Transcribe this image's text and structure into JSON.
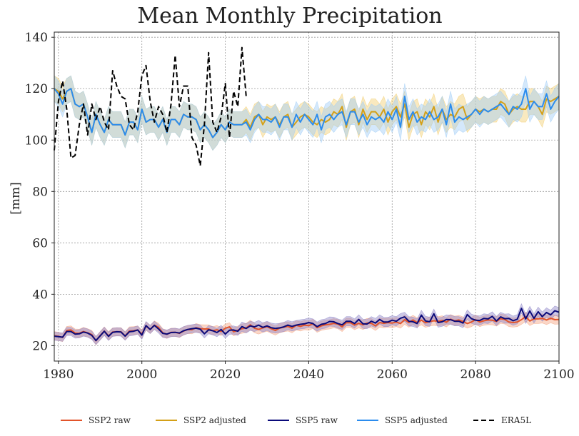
{
  "chart_data": {
    "type": "line",
    "title": "Mean Monthly Precipitation",
    "xlabel": "",
    "ylabel": "[mm]",
    "xlim": [
      1979,
      2100
    ],
    "ylim": [
      14,
      142
    ],
    "xticks": [
      1980,
      2000,
      2020,
      2040,
      2060,
      2080,
      2100
    ],
    "yticks": [
      20,
      40,
      60,
      80,
      100,
      120,
      140
    ],
    "grid": true,
    "legend_position": "bottom",
    "series": [
      {
        "name": "SSP2 raw",
        "color": "#e2542a",
        "band_color": "#f4a582",
        "style": "solid",
        "x_start": 1979,
        "x_step": 1,
        "values": [
          23.9,
          23.6,
          23.2,
          25.9,
          26.1,
          24.9,
          24.8,
          25.5,
          25.0,
          24.3,
          21.9,
          23.9,
          25.7,
          23.8,
          25.3,
          25.4,
          25.4,
          23.8,
          25.7,
          25.8,
          26.1,
          24.5,
          27.6,
          26.3,
          28.0,
          27.1,
          25.0,
          24.4,
          25.2,
          25.2,
          24.8,
          25.7,
          26.3,
          26.2,
          27.0,
          26.6,
          26.5,
          26.5,
          25.8,
          26.2,
          25.5,
          26.8,
          27.3,
          25.4,
          26.0,
          26.6,
          26.9,
          28.1,
          26.8,
          26.3,
          26.9,
          27.4,
          26.6,
          25.9,
          26.8,
          27.2,
          27.5,
          26.8,
          27.9,
          27.5,
          28.0,
          27.8,
          28.5,
          27.0,
          27.7,
          28.1,
          28.3,
          28.7,
          28.4,
          27.3,
          28.9,
          28.9,
          28.0,
          28.7,
          28.1,
          28.8,
          28.7,
          27.7,
          29.0,
          28.7,
          29.0,
          28.8,
          29.2,
          28.6,
          30.1,
          29.0,
          30.0,
          29.0,
          29.9,
          28.9,
          29.4,
          29.7,
          29.5,
          29.8,
          29.1,
          30.3,
          29.7,
          30.0,
          29.4,
          28.6,
          29.2,
          30.1,
          29.2,
          29.7,
          30.0,
          29.9,
          29.4,
          30.5,
          30.2,
          29.2,
          29.0,
          29.2,
          30.1,
          31.3,
          29.6,
          30.4,
          30.4,
          30.6,
          30.0,
          30.7,
          30.1,
          30.2
        ]
      },
      {
        "name": "SSP2 adjusted",
        "color": "#d4a017",
        "band_color": "#f2cf72",
        "style": "solid",
        "x_start": 1979,
        "x_step": 1,
        "values": [
          120,
          119,
          116,
          119,
          120,
          114,
          113,
          114,
          109,
          103,
          110,
          106,
          103,
          108,
          106,
          106,
          106,
          102,
          107,
          107,
          104,
          112,
          107,
          108,
          108,
          105,
          108,
          103,
          108,
          108,
          106,
          110,
          109,
          109,
          108,
          104,
          106,
          104,
          101,
          103,
          106,
          104,
          107,
          106,
          106,
          106,
          108,
          105,
          109,
          110,
          106,
          109,
          108,
          109,
          106,
          109,
          110,
          105,
          107,
          109,
          110,
          109,
          107,
          106,
          108,
          107,
          108,
          111,
          110,
          113,
          105,
          111,
          112,
          106,
          112,
          108,
          111,
          111,
          109,
          112,
          107,
          111,
          113,
          109,
          114,
          105,
          110,
          111,
          106,
          111,
          109,
          113,
          107,
          112,
          108,
          110,
          109,
          112,
          113,
          108,
          110,
          112,
          111,
          112,
          111,
          112,
          112,
          115,
          114,
          110,
          112,
          113,
          112,
          112,
          115,
          115,
          113,
          110,
          116,
          115,
          116,
          117
        ]
      },
      {
        "name": "SSP5 raw",
        "color": "#0a0a7a",
        "band_color": "#8e86c8",
        "style": "solid",
        "x_start": 1979,
        "x_step": 1,
        "values": [
          23.7,
          23.5,
          23.3,
          25.5,
          25.5,
          24.5,
          24.6,
          25.3,
          24.9,
          24.0,
          22.0,
          23.8,
          25.6,
          23.6,
          25.2,
          25.4,
          25.3,
          23.7,
          25.4,
          25.6,
          26.1,
          24.1,
          27.8,
          26.3,
          27.9,
          26.5,
          24.8,
          24.5,
          25.1,
          25.2,
          24.9,
          25.8,
          26.3,
          26.6,
          26.8,
          26.4,
          24.6,
          26.2,
          25.8,
          25.1,
          26.3,
          24.5,
          26.0,
          26.1,
          25.6,
          27.4,
          26.7,
          27.7,
          27.3,
          28.0,
          27.1,
          27.7,
          27.0,
          26.7,
          26.9,
          27.3,
          28.0,
          27.5,
          28.0,
          28.3,
          28.5,
          29.0,
          28.6,
          27.4,
          28.3,
          28.6,
          29.4,
          29.3,
          28.6,
          28.1,
          29.5,
          29.5,
          28.6,
          30.2,
          28.5,
          28.4,
          29.5,
          28.8,
          30.2,
          29.2,
          29.2,
          29.9,
          29.5,
          30.7,
          31.2,
          29.5,
          29.3,
          28.6,
          31.9,
          29.6,
          29.3,
          32.4,
          29.0,
          29.3,
          30.2,
          30.1,
          29.5,
          29.5,
          28.8,
          32.1,
          30.5,
          29.9,
          29.8,
          30.6,
          30.4,
          31.4,
          29.6,
          31.2,
          30.5,
          30.6,
          29.7,
          30.3,
          34.5,
          30.4,
          33.5,
          30.6,
          33.2,
          31.3,
          32.9,
          32.0,
          33.6,
          33.0
        ]
      },
      {
        "name": "SSP5 adjusted",
        "color": "#2b8cee",
        "band_color": "#9fcdf7",
        "style": "solid",
        "x_start": 1979,
        "x_step": 1,
        "values": [
          120,
          118,
          114,
          119,
          120,
          114,
          113,
          114,
          109,
          103,
          110,
          106,
          103,
          108,
          106,
          106,
          106,
          102,
          107,
          107,
          104,
          112,
          107,
          108,
          108,
          105,
          108,
          103,
          108,
          108,
          106,
          110,
          109,
          109,
          108,
          104,
          106,
          104,
          101,
          103,
          106,
          104,
          107,
          106,
          106,
          106,
          107,
          104,
          108,
          110,
          108,
          108,
          107,
          109,
          105,
          109,
          109,
          105,
          110,
          107,
          110,
          108,
          106,
          110,
          104,
          109,
          110,
          108,
          110,
          111,
          106,
          111,
          111,
          107,
          110,
          106,
          109,
          108,
          109,
          107,
          111,
          108,
          112,
          105,
          117,
          108,
          111,
          107,
          109,
          108,
          111,
          108,
          109,
          112,
          106,
          114,
          107,
          109,
          108,
          109,
          110,
          112,
          110,
          112,
          111,
          112,
          113,
          114,
          112,
          110,
          113,
          112,
          114,
          120,
          112,
          115,
          113,
          113,
          118,
          112,
          115,
          117
        ]
      },
      {
        "name": "ERA5L",
        "color": "#000000",
        "style": "dashed",
        "x_start": 1979,
        "x_step": 1,
        "values": [
          96,
          115,
          123,
          112,
          93,
          94,
          106,
          114,
          102,
          114,
          108,
          113,
          107,
          104,
          127,
          121,
          117,
          116,
          106,
          104,
          111,
          125,
          129,
          115,
          107,
          113,
          110,
          103,
          114,
          133,
          113,
          121,
          121,
          101,
          98,
          90,
          106,
          134,
          107,
          103,
          109,
          122,
          101,
          119,
          113,
          136,
          117
        ]
      }
    ],
    "bands": {
      "SSP2 raw": {
        "x_start": 1979,
        "x_step": 1,
        "halfwidth": [
          1.6,
          1.6,
          1.6,
          1.6,
          1.6,
          1.6,
          1.6,
          1.6,
          1.6,
          1.6,
          1.6,
          1.6,
          1.6,
          1.6,
          1.6,
          1.6,
          1.6,
          1.6,
          1.6,
          1.6,
          1.6,
          1.6,
          1.6,
          1.6,
          1.6,
          1.6,
          1.6,
          1.6,
          1.6,
          1.6,
          1.6,
          1.6,
          1.6,
          1.6,
          1.6,
          1.6,
          1.6,
          1.6,
          1.6,
          1.6,
          1.6,
          1.6,
          1.6,
          1.6,
          1.6,
          1.8,
          1.8,
          1.8,
          1.8,
          1.8,
          1.8,
          1.8,
          1.8,
          1.8,
          1.8,
          1.8,
          1.8,
          1.8,
          1.8,
          1.8,
          1.8,
          1.8,
          1.8,
          1.8,
          1.8,
          1.8,
          1.8,
          1.8,
          1.8,
          1.8,
          1.8,
          1.8,
          1.8,
          1.8,
          1.8,
          1.8,
          1.8,
          1.8,
          1.8,
          1.8,
          1.8,
          1.8,
          1.8,
          1.8,
          1.8,
          1.8,
          1.8,
          1.8,
          1.8,
          1.8,
          1.8,
          1.8,
          1.8,
          1.8,
          1.8,
          1.8,
          1.8,
          1.8,
          1.8,
          1.8,
          1.8,
          1.8,
          1.8,
          1.8,
          1.8,
          1.8,
          1.8,
          1.8,
          1.8,
          1.8,
          1.8,
          1.8,
          1.8,
          1.8,
          1.8,
          1.8,
          1.8,
          1.8,
          1.8,
          1.8,
          1.8,
          1.8
        ]
      },
      "SSP2 adjusted": {
        "x_start": 1979,
        "x_step": 1,
        "halfwidth": [
          5,
          5,
          5,
          5,
          5,
          5,
          5,
          5,
          5,
          5,
          5,
          5,
          5,
          5,
          5,
          5,
          5,
          5,
          5,
          5,
          5,
          5,
          5,
          5,
          5,
          5,
          5,
          5,
          5,
          5,
          5,
          5,
          5,
          5,
          5,
          5,
          5,
          5,
          5,
          5,
          5,
          5,
          5,
          5,
          5,
          5,
          5,
          5,
          5,
          5,
          5,
          5,
          5,
          5,
          5,
          5,
          5,
          5,
          5,
          5,
          5,
          5,
          5,
          5,
          5,
          5,
          5,
          5,
          5,
          5,
          5,
          5,
          5,
          5,
          5,
          5,
          5,
          5,
          5,
          5,
          5,
          5,
          5,
          5,
          5,
          5,
          5,
          5,
          5,
          5,
          5,
          5,
          5,
          5,
          5,
          5,
          5,
          5,
          5,
          5,
          5,
          5,
          5,
          5,
          5,
          5,
          5,
          5,
          5,
          5,
          5,
          5,
          5,
          5,
          5,
          5,
          5,
          5,
          5,
          5,
          5,
          5
        ]
      },
      "SSP5 raw": {
        "x_start": 1979,
        "x_step": 1,
        "halfwidth": [
          1.6,
          1.6,
          1.6,
          1.6,
          1.6,
          1.6,
          1.6,
          1.6,
          1.6,
          1.6,
          1.6,
          1.6,
          1.6,
          1.6,
          1.6,
          1.6,
          1.6,
          1.6,
          1.6,
          1.6,
          1.6,
          1.6,
          1.6,
          1.6,
          1.6,
          1.6,
          1.6,
          1.6,
          1.6,
          1.6,
          1.6,
          1.6,
          1.6,
          1.6,
          1.6,
          1.6,
          1.6,
          1.6,
          1.6,
          1.6,
          1.6,
          1.6,
          1.6,
          1.6,
          1.6,
          1.8,
          1.8,
          1.8,
          1.8,
          1.8,
          1.8,
          1.8,
          1.8,
          1.8,
          1.8,
          1.8,
          1.8,
          1.8,
          1.8,
          1.8,
          1.8,
          1.8,
          1.8,
          1.8,
          1.8,
          1.8,
          1.8,
          1.8,
          1.8,
          1.8,
          1.8,
          1.8,
          1.8,
          1.8,
          1.8,
          1.8,
          1.8,
          1.8,
          1.8,
          1.8,
          1.8,
          1.8,
          1.8,
          1.8,
          1.8,
          1.8,
          1.8,
          1.8,
          1.8,
          1.8,
          1.8,
          1.8,
          1.8,
          1.8,
          1.8,
          1.8,
          1.8,
          1.8,
          1.8,
          1.8,
          1.8,
          1.8,
          1.8,
          1.8,
          1.8,
          1.8,
          1.8,
          1.8,
          1.8,
          1.8,
          1.8,
          1.8,
          1.8,
          1.8,
          1.8,
          1.8,
          1.8,
          1.8,
          1.8,
          1.8,
          1.8,
          1.8
        ]
      },
      "SSP5 adjusted": {
        "x_start": 1979,
        "x_step": 1,
        "halfwidth": [
          5,
          5,
          5,
          5,
          5,
          5,
          5,
          5,
          5,
          5,
          5,
          5,
          5,
          5,
          5,
          5,
          5,
          5,
          5,
          5,
          5,
          5,
          5,
          5,
          5,
          5,
          5,
          5,
          5,
          5,
          5,
          5,
          5,
          5,
          5,
          5,
          5,
          5,
          5,
          5,
          5,
          5,
          5,
          5,
          5,
          5,
          5,
          5,
          5,
          5,
          5,
          5,
          5,
          5,
          5,
          5,
          5,
          5,
          5,
          5,
          5,
          5,
          5,
          5,
          5,
          5,
          5,
          5,
          5,
          5,
          5,
          5,
          5,
          5,
          5,
          5,
          5,
          5,
          5,
          5,
          5,
          5,
          5,
          5,
          5,
          5,
          5,
          5,
          5,
          5,
          5,
          5,
          5,
          5,
          5,
          5,
          5,
          5,
          5,
          5,
          5,
          5,
          5,
          5,
          5,
          5,
          5,
          5,
          5,
          5,
          5,
          5,
          5,
          5,
          5,
          5,
          5,
          5,
          5,
          5,
          5,
          5
        ]
      }
    }
  }
}
